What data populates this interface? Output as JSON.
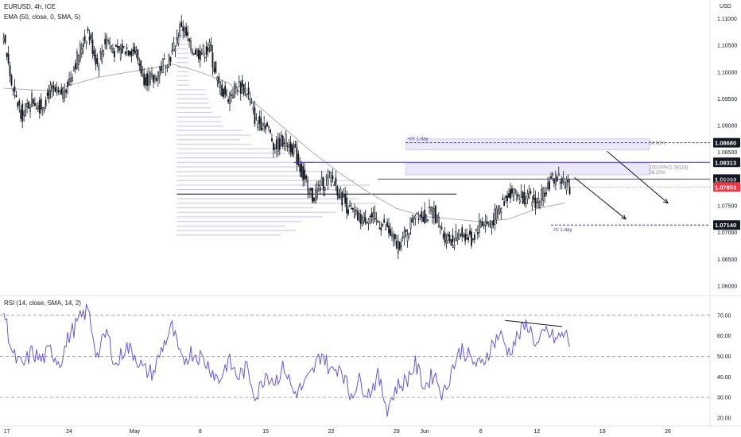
{
  "header": {
    "symbol_line": "EURUSD, 4h, ICE",
    "ema_line": "EMA (50, close, 0, SMA, 5)",
    "rsi_line": "RSI (14, close, SMA, 14, 2)",
    "currency": "USD"
  },
  "colors": {
    "candle": "#131722",
    "ema": "#b0b0b0",
    "rsi": "#6a5acd",
    "profile": "#d6cdf0",
    "zone": "#ece8fa",
    "dashed_level": "#4a3aa8",
    "marker": "#3a2d90",
    "price_tag": "#f23645"
  },
  "chart_data": [
    {
      "type": "candlestick",
      "title": "EURUSD, 4h, ICE",
      "ylim": [
        1.0585,
        1.1135
      ],
      "yticks": [
        "1.11000",
        "1.10500",
        "1.10000",
        "1.09500",
        "1.09000",
        "1.08500",
        "1.08000",
        "1.07500",
        "1.07000",
        "1.06500",
        "1.06000"
      ],
      "ytick_values": [
        1.11,
        1.105,
        1.1,
        1.095,
        1.09,
        1.085,
        1.08,
        1.075,
        1.07,
        1.065,
        1.06
      ],
      "xticks": [
        "17",
        "24",
        "May",
        "8",
        "15",
        "22",
        "29",
        "Jun",
        "6",
        "12",
        "19",
        "26"
      ],
      "xtick_days": [
        0,
        7,
        14,
        21,
        28,
        35,
        42,
        45,
        51,
        57,
        64,
        71
      ],
      "last_bar_day": 60.6,
      "xlim_days": [
        -0.4,
        75.5
      ],
      "price_path": [
        [
          0,
          1.1065
        ],
        [
          1,
          1.096
        ],
        [
          2,
          1.092
        ],
        [
          3,
          1.095
        ],
        [
          4,
          1.0935
        ],
        [
          5,
          1.0965
        ],
        [
          6,
          1.0955
        ],
        [
          7,
          1.0985
        ],
        [
          8,
          1.1035
        ],
        [
          9,
          1.1075
        ],
        [
          10,
          1.1015
        ],
        [
          11,
          1.1065
        ],
        [
          12,
          1.1035
        ],
        [
          13,
          1.1045
        ],
        [
          14,
          1.104
        ],
        [
          15,
          1.099
        ],
        [
          16,
          1.0985
        ],
        [
          17,
          1.1015
        ],
        [
          18,
          1.1035
        ],
        [
          19,
          1.109
        ],
        [
          20,
          1.1045
        ],
        [
          21,
          1.1035
        ],
        [
          22,
          1.1045
        ],
        [
          23,
          1.097
        ],
        [
          24,
          1.0955
        ],
        [
          25,
          1.0975
        ],
        [
          26,
          1.0965
        ],
        [
          27,
          1.0905
        ],
        [
          28,
          1.0905
        ],
        [
          29,
          1.086
        ],
        [
          30,
          1.0875
        ],
        [
          31,
          1.0855
        ],
        [
          32,
          1.0805
        ],
        [
          33,
          1.0765
        ],
        [
          34,
          1.079
        ],
        [
          35,
          1.0805
        ],
        [
          36,
          1.077
        ],
        [
          37,
          1.074
        ],
        [
          38,
          1.0725
        ],
        [
          39,
          1.073
        ],
        [
          40,
          1.072
        ],
        [
          41,
          1.0705
        ],
        [
          42,
          1.0675
        ],
        [
          43,
          1.0695
        ],
        [
          44,
          1.074
        ],
        [
          45,
          1.073
        ],
        [
          46,
          1.074
        ],
        [
          47,
          1.0695
        ],
        [
          48,
          1.0685
        ],
        [
          49,
          1.07
        ],
        [
          50,
          1.0685
        ],
        [
          51,
          1.072
        ],
        [
          52,
          1.0715
        ],
        [
          53,
          1.0745
        ],
        [
          54,
          1.0775
        ],
        [
          55,
          1.077
        ],
        [
          56,
          1.0765
        ],
        [
          57,
          1.0755
        ],
        [
          58,
          1.0785
        ],
        [
          59,
          1.0805
        ],
        [
          60,
          1.0792
        ],
        [
          60.6,
          1.0785
        ]
      ],
      "ema_path": [
        [
          0,
          1.097
        ],
        [
          5,
          1.0965
        ],
        [
          10,
          1.099
        ],
        [
          15,
          1.1005
        ],
        [
          18,
          1.1015
        ],
        [
          21,
          1.1
        ],
        [
          24,
          1.098
        ],
        [
          27,
          1.094
        ],
        [
          30,
          1.0895
        ],
        [
          33,
          1.085
        ],
        [
          36,
          1.081
        ],
        [
          39,
          1.0775
        ],
        [
          42,
          1.0745
        ],
        [
          45,
          1.073
        ],
        [
          48,
          1.0725
        ],
        [
          51,
          1.072
        ],
        [
          54,
          1.0725
        ],
        [
          57,
          1.0745
        ],
        [
          60,
          1.0755
        ]
      ],
      "volume_profile": {
        "price_range": [
          1.0695,
          1.1085
        ],
        "row_step": 0.00085,
        "start_day": 18.5,
        "max_len_days": 23,
        "poc_price": 1.0772,
        "poc_line_end_day": 48.4
      },
      "levels": [
        {
          "price": 1.0868,
          "label": "1.08680",
          "note": "+IV 1-day",
          "from_day": 43,
          "style": "dashed"
        },
        {
          "price": 1.08313,
          "label": "1.08313",
          "from_day": 31,
          "style": "line"
        },
        {
          "price": 1.08,
          "label": "1.08000",
          "from_day": 40,
          "style": "line"
        },
        {
          "price": 1.0714,
          "label": "1.07140",
          "note": "-IV 1-day",
          "from_day": 58.5,
          "style": "dashed"
        }
      ],
      "zones": [
        {
          "from": 1.0855,
          "to": 1.0875,
          "start_day": 43,
          "end_day": 69
        },
        {
          "from": 1.0808,
          "to": 1.0829,
          "start_day": 43,
          "end_day": 69
        }
      ],
      "fib_notes": [
        {
          "text": "50.00%",
          "price": 1.0863,
          "day": 69
        },
        {
          "text": "100.00%(1.08118)",
          "price": 1.0818,
          "day": 69
        },
        {
          "text": "38.20%",
          "price": 1.0808,
          "day": 69
        }
      ],
      "current_price": {
        "price": 1.07853,
        "label": "1.07853"
      },
      "arrows": [
        {
          "from": [
            64.5,
            1.0852
          ],
          "to": [
            71,
            1.0755
          ]
        },
        {
          "from": [
            61,
            1.0803
          ],
          "to": [
            66.5,
            1.0725
          ]
        }
      ]
    },
    {
      "type": "line",
      "title": "RSI (14, close, SMA, 14, 2)",
      "ylim": [
        16.5,
        76.5
      ],
      "yticks": [
        "70.00",
        "60.00",
        "50.00",
        "40.00",
        "30.00",
        "20.00"
      ],
      "ytick_values": [
        70,
        60,
        50,
        40,
        30,
        20
      ],
      "band_lines": [
        70,
        50,
        30
      ],
      "path": [
        [
          0,
          72
        ],
        [
          1,
          50
        ],
        [
          2,
          45
        ],
        [
          3,
          52
        ],
        [
          4,
          48
        ],
        [
          5,
          53
        ],
        [
          6,
          47
        ],
        [
          7,
          60
        ],
        [
          8,
          67
        ],
        [
          9,
          73
        ],
        [
          10,
          50
        ],
        [
          11,
          62
        ],
        [
          12,
          45
        ],
        [
          13,
          55
        ],
        [
          14,
          51
        ],
        [
          15,
          43
        ],
        [
          16,
          42
        ],
        [
          17,
          55
        ],
        [
          18,
          64
        ],
        [
          19,
          47
        ],
        [
          20,
          52
        ],
        [
          21,
          50
        ],
        [
          22,
          45
        ],
        [
          23,
          38
        ],
        [
          24,
          48
        ],
        [
          25,
          40
        ],
        [
          26,
          44
        ],
        [
          27,
          30
        ],
        [
          28,
          42
        ],
        [
          29,
          38
        ],
        [
          30,
          45
        ],
        [
          31,
          32
        ],
        [
          32,
          35
        ],
        [
          33,
          42
        ],
        [
          34,
          52
        ],
        [
          35,
          42
        ],
        [
          36,
          46
        ],
        [
          37,
          31
        ],
        [
          38,
          38
        ],
        [
          39,
          32
        ],
        [
          40,
          40
        ],
        [
          41,
          25
        ],
        [
          42,
          35
        ],
        [
          43,
          38
        ],
        [
          44,
          46
        ],
        [
          45,
          35
        ],
        [
          46,
          42
        ],
        [
          47,
          31
        ],
        [
          48,
          45
        ],
        [
          49,
          54
        ],
        [
          50,
          48
        ],
        [
          51,
          45
        ],
        [
          52,
          54
        ],
        [
          53,
          61
        ],
        [
          54,
          52
        ],
        [
          55,
          60
        ],
        [
          56,
          66
        ],
        [
          57,
          55
        ],
        [
          58,
          62
        ],
        [
          59,
          58
        ],
        [
          60,
          61
        ],
        [
          60.6,
          56
        ]
      ],
      "divergence_line": {
        "from": [
          53.6,
          67.5
        ],
        "to": [
          59.7,
          64.5
        ]
      }
    }
  ]
}
